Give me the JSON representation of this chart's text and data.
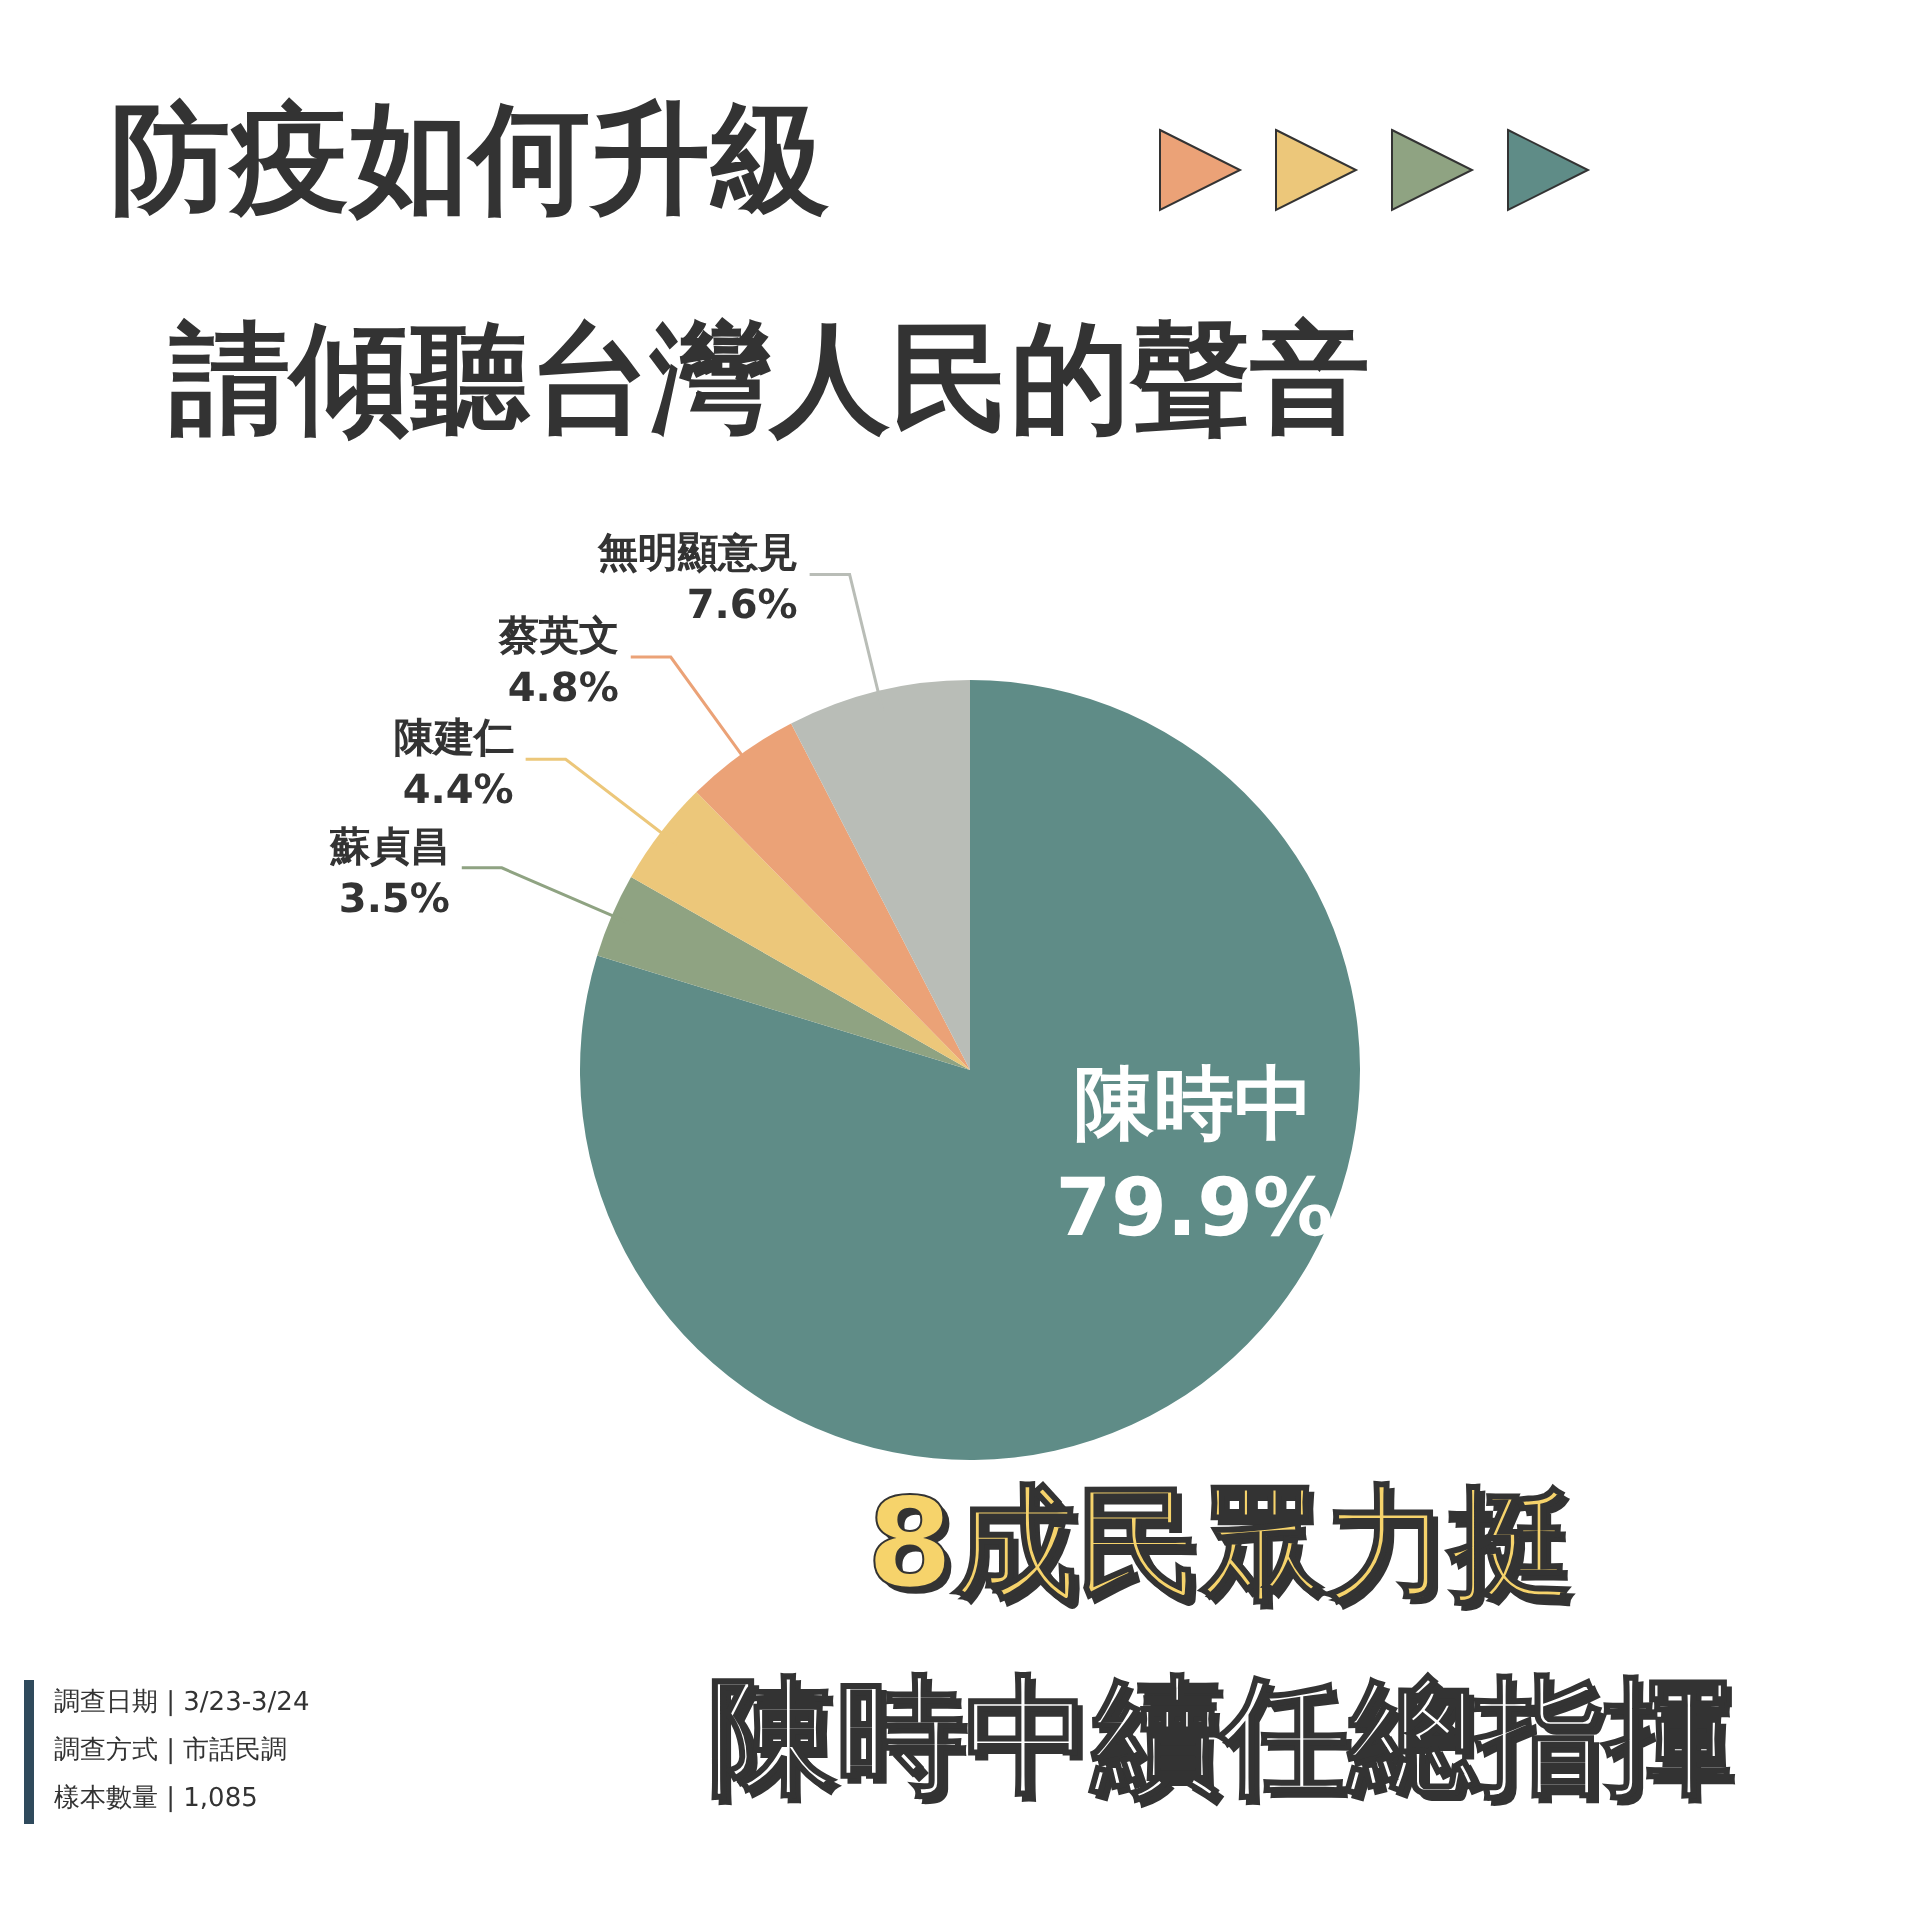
{
  "chart_data": {
    "type": "pie",
    "title": "防疫如何升級",
    "subtitle": "請傾聽台灣人民的聲音",
    "categories": [
      "陳時中",
      "蘇貞昌",
      "陳建仁",
      "蔡英文",
      "無明顯意見"
    ],
    "values": [
      79.9,
      3.5,
      4.4,
      4.8,
      7.6
    ],
    "value_labels": [
      "79.9%",
      "3.5%",
      "4.4%",
      "4.8%",
      "7.6%"
    ],
    "colors": [
      "#5f8c87",
      "#8fa382",
      "#ecc77a",
      "#eba277",
      "#b9bdb7"
    ],
    "annotations": [
      "8成民眾力挺",
      "陳時中續任總指揮",
      "調查日期 | 3/23-3/24",
      "調查方式 | 市話民調",
      "樣本數量 | 1,085"
    ],
    "legend": false
  }
}
